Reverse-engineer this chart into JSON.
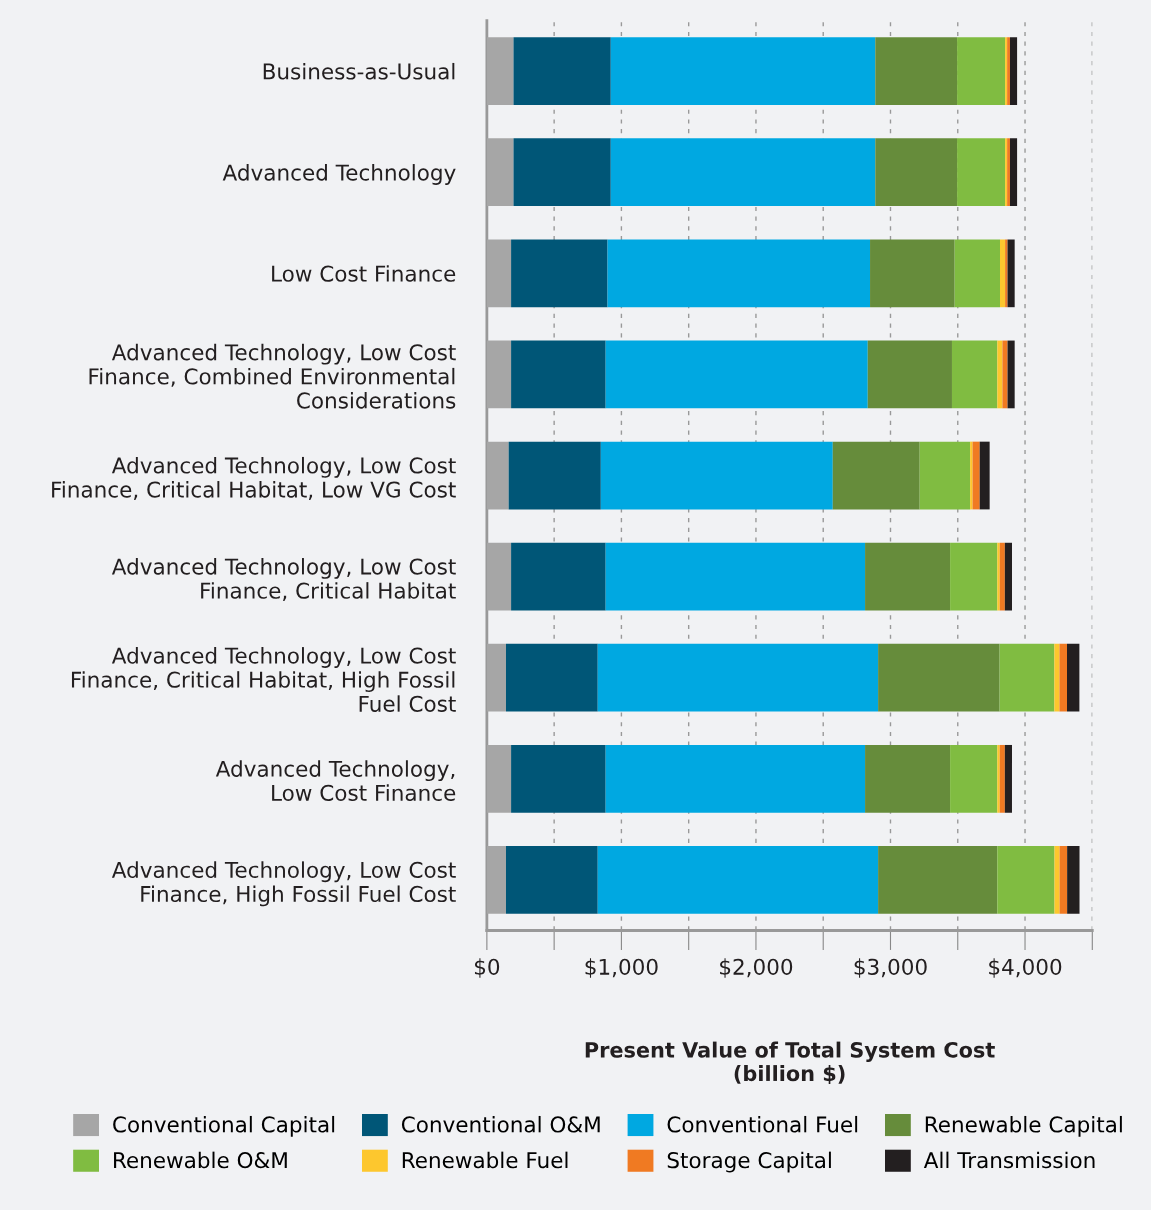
{
  "chart_data": {
    "type": "bar",
    "orientation": "horizontal",
    "stacked": true,
    "xlabel": "Present Value of Total System Cost\n(billion $)",
    "categories": [
      "Business-as-Usual",
      "Advanced Technology",
      "Low Cost Finance",
      "Advanced Technology, Low Cost\nFinance, Combined Environmental\nConsiderations",
      "Advanced Technology, Low Cost\nFinance, Critical Habitat, Low VG Cost",
      "Advanced Technology, Low Cost\nFinance, Critical Habitat",
      "Advanced Technology, Low Cost\nFinance, Critical Habitat, High Fossil\nFuel Cost",
      "Advanced Technology,\nLow Cost Finance",
      "Advanced Technology, Low Cost\nFinance, High Fossil Fuel Cost"
    ],
    "series": [
      {
        "name": "Conventional Capital",
        "color": "#a6a6a6",
        "values": [
          198,
          198,
          180,
          180,
          162,
          180,
          142,
          180,
          142
        ]
      },
      {
        "name": "Conventional O&M",
        "color": "#005677",
        "values": [
          723,
          723,
          717,
          703,
          685,
          703,
          682,
          703,
          682
        ]
      },
      {
        "name": "Conventional Fuel",
        "color": "#00a8e1",
        "values": [
          1966,
          1966,
          1951,
          1948,
          1724,
          1928,
          2084,
          1928,
          2084
        ]
      },
      {
        "name": "Renewable Capital",
        "color": "#668c3b",
        "values": [
          608,
          608,
          629,
          626,
          646,
          632,
          903,
          632,
          886
        ]
      },
      {
        "name": "Renewable O&M",
        "color": "#80bc41",
        "values": [
          357,
          357,
          337,
          337,
          375,
          351,
          407,
          351,
          425
        ]
      },
      {
        "name": "Renewable Fuel",
        "color": "#fdc72e",
        "values": [
          15,
          15,
          38,
          38,
          18,
          18,
          38,
          18,
          38
        ]
      },
      {
        "name": "Storage Capital",
        "color": "#f07a22",
        "values": [
          21,
          21,
          18,
          38,
          53,
          38,
          56,
          38,
          56
        ]
      },
      {
        "name": "All Transmission",
        "color": "#231f20",
        "values": [
          53,
          53,
          53,
          53,
          74,
          53,
          92,
          53,
          92
        ]
      }
    ],
    "xlim": [
      0,
      4500
    ],
    "xticks": [
      {
        "value": 0,
        "label": "$0"
      },
      {
        "value": 500,
        "label": null
      },
      {
        "value": 1000,
        "label": "$1,000"
      },
      {
        "value": 1500,
        "label": null
      },
      {
        "value": 2000,
        "label": "$2,000"
      },
      {
        "value": 2500,
        "label": null
      },
      {
        "value": 3000,
        "label": "$3,000"
      },
      {
        "value": 3500,
        "label": null
      },
      {
        "value": 4000,
        "label": "$4,000"
      },
      {
        "value": 4500,
        "label": null
      }
    ],
    "grid": "x",
    "legend": "bottom"
  }
}
